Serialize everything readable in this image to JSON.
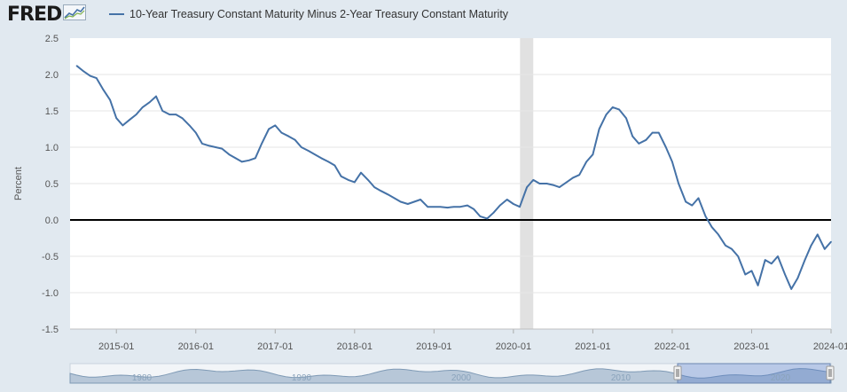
{
  "brand": {
    "name": "FRED",
    "icon": "chart-line-icon"
  },
  "chart_data": {
    "type": "line",
    "title": "10-Year Treasury Constant Maturity Minus 2-Year Treasury Constant Maturity",
    "xlabel": "",
    "ylabel": "Percent",
    "ylim": [
      -1.5,
      2.5
    ],
    "xlim": [
      "2014-06",
      "2024-01"
    ],
    "yticks": [
      "2.5",
      "2.0",
      "1.5",
      "1.0",
      "0.5",
      "0.0",
      "-0.5",
      "-1.0",
      "-1.5"
    ],
    "xticks": [
      "2015-01",
      "2016-01",
      "2017-01",
      "2018-01",
      "2019-01",
      "2020-01",
      "2021-01",
      "2022-01",
      "2023-01",
      "2024-01"
    ],
    "zero_line": 0.0,
    "grid": true,
    "recession": {
      "start": "2020-02",
      "end": "2020-04"
    },
    "series": [
      {
        "name": "10-Year Treasury Constant Maturity Minus 2-Year Treasury Constant Maturity",
        "color": "#4572a7",
        "x": [
          2014.5,
          2014.58,
          2014.67,
          2014.75,
          2014.83,
          2014.92,
          2015.0,
          2015.08,
          2015.17,
          2015.25,
          2015.33,
          2015.42,
          2015.5,
          2015.58,
          2015.67,
          2015.75,
          2015.83,
          2015.92,
          2016.0,
          2016.08,
          2016.17,
          2016.25,
          2016.33,
          2016.42,
          2016.5,
          2016.58,
          2016.67,
          2016.75,
          2016.83,
          2016.92,
          2017.0,
          2017.08,
          2017.17,
          2017.25,
          2017.33,
          2017.42,
          2017.5,
          2017.58,
          2017.67,
          2017.75,
          2017.83,
          2017.92,
          2018.0,
          2018.08,
          2018.17,
          2018.25,
          2018.33,
          2018.42,
          2018.5,
          2018.58,
          2018.67,
          2018.75,
          2018.83,
          2018.92,
          2019.0,
          2019.08,
          2019.17,
          2019.25,
          2019.33,
          2019.42,
          2019.5,
          2019.58,
          2019.67,
          2019.75,
          2019.83,
          2019.92,
          2020.0,
          2020.08,
          2020.17,
          2020.25,
          2020.33,
          2020.42,
          2020.5,
          2020.58,
          2020.67,
          2020.75,
          2020.83,
          2020.92,
          2021.0,
          2021.08,
          2021.17,
          2021.25,
          2021.33,
          2021.42,
          2021.5,
          2021.58,
          2021.67,
          2021.75,
          2021.83,
          2021.92,
          2022.0,
          2022.08,
          2022.17,
          2022.25,
          2022.33,
          2022.42,
          2022.5,
          2022.58,
          2022.67,
          2022.75,
          2022.83,
          2022.92,
          2023.0,
          2023.08,
          2023.17,
          2023.25,
          2023.33,
          2023.42,
          2023.5,
          2023.58,
          2023.67,
          2023.75,
          2023.83,
          2023.92,
          2024.0
        ],
        "values": [
          2.12,
          2.05,
          1.98,
          1.95,
          1.8,
          1.65,
          1.4,
          1.3,
          1.38,
          1.45,
          1.55,
          1.62,
          1.7,
          1.5,
          1.45,
          1.45,
          1.4,
          1.3,
          1.2,
          1.05,
          1.02,
          1.0,
          0.98,
          0.9,
          0.85,
          0.8,
          0.82,
          0.85,
          1.05,
          1.25,
          1.3,
          1.2,
          1.15,
          1.1,
          1.0,
          0.95,
          0.9,
          0.85,
          0.8,
          0.75,
          0.6,
          0.55,
          0.52,
          0.65,
          0.55,
          0.45,
          0.4,
          0.35,
          0.3,
          0.25,
          0.22,
          0.25,
          0.28,
          0.18,
          0.18,
          0.18,
          0.17,
          0.18,
          0.18,
          0.2,
          0.15,
          0.05,
          0.02,
          0.1,
          0.2,
          0.28,
          0.22,
          0.18,
          0.45,
          0.55,
          0.5,
          0.5,
          0.48,
          0.45,
          0.52,
          0.58,
          0.62,
          0.8,
          0.9,
          1.25,
          1.45,
          1.55,
          1.52,
          1.4,
          1.15,
          1.05,
          1.1,
          1.2,
          1.2,
          1.0,
          0.8,
          0.5,
          0.25,
          0.2,
          0.3,
          0.05,
          -0.1,
          -0.2,
          -0.35,
          -0.4,
          -0.5,
          -0.75,
          -0.7,
          -0.9,
          -0.55,
          -0.6,
          -0.5,
          -0.75,
          -0.95,
          -0.8,
          -0.55,
          -0.35,
          -0.2,
          -0.4,
          -0.3
        ]
      }
    ]
  },
  "navigator": {
    "labels": [
      "1980",
      "1990",
      "2000",
      "2010",
      "2020"
    ]
  }
}
